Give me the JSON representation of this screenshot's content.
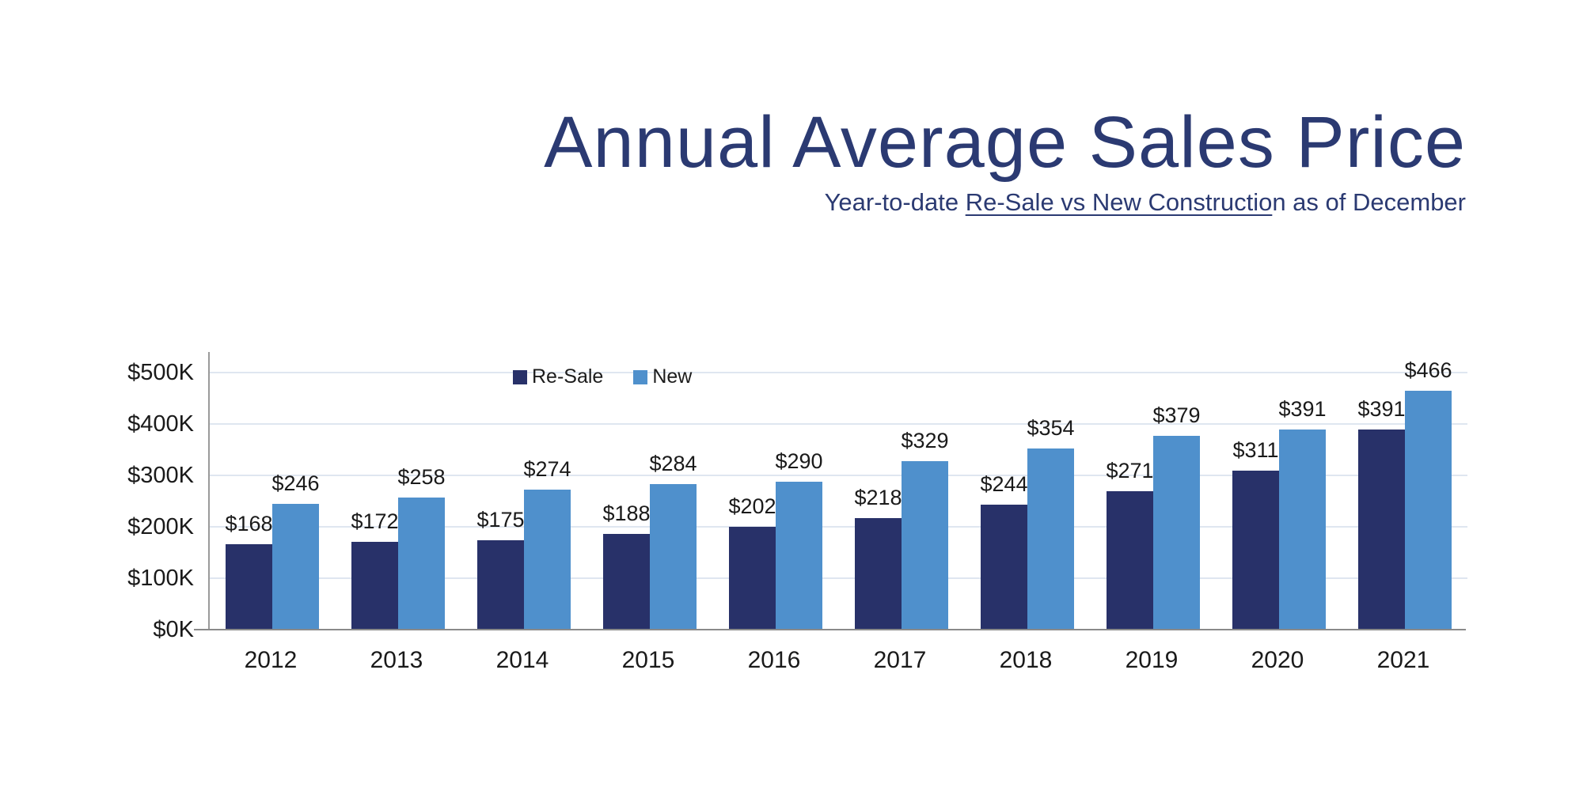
{
  "slide": {
    "title": "Annual Average Sales Price",
    "subtitle_prefix": "Year-to-date ",
    "subtitle_underlined": "Re-Sale vs New Constructio",
    "subtitle_suffix": "n as of December"
  },
  "legend": {
    "resale_label": "Re-Sale",
    "new_label": "New"
  },
  "colors": {
    "resale_bar": "#283169",
    "new_bar": "#4f90cc",
    "title_navy": "#2b3a72",
    "gridline": "#dfe6f0",
    "axis_gray": "#8a8a8a",
    "label_text": "#1a1a1a"
  },
  "chart_data": {
    "type": "bar",
    "title": "Annual Average Sales Price",
    "subtitle": "Year-to-date Re-Sale vs New Construction as of December",
    "categories": [
      "2012",
      "2013",
      "2014",
      "2015",
      "2016",
      "2017",
      "2018",
      "2019",
      "2020",
      "2021"
    ],
    "series": [
      {
        "name": "Re-Sale",
        "color": "#283169",
        "values": [
          168,
          172,
          175,
          188,
          202,
          218,
          244,
          271,
          311,
          391
        ]
      },
      {
        "name": "New",
        "color": "#4f90cc",
        "values": [
          246,
          258,
          274,
          284,
          290,
          329,
          354,
          379,
          391,
          466
        ]
      }
    ],
    "value_unit": "thousand dollars",
    "value_label_prefix": "$",
    "xlabel": "",
    "ylabel": "",
    "y_axis": {
      "min": 0,
      "max": 500,
      "tick_step": 100,
      "tick_labels": [
        "$0K",
        "$100K",
        "$200K",
        "$300K",
        "$400K",
        "$500K"
      ]
    },
    "grid": true,
    "legend_position": "top-center-inside",
    "legend_entries": [
      "Re-Sale",
      "New"
    ]
  }
}
